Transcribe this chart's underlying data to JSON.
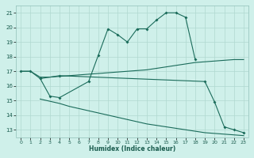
{
  "xlabel": "Humidex (Indice chaleur)",
  "background_color": "#cff0ea",
  "grid_color": "#b0d8d0",
  "line_color": "#1a6b5a",
  "xlim": [
    -0.5,
    23.5
  ],
  "ylim": [
    12.5,
    21.5
  ],
  "yticks": [
    13,
    14,
    15,
    16,
    17,
    18,
    19,
    20,
    21
  ],
  "xticks": [
    0,
    1,
    2,
    3,
    4,
    5,
    6,
    7,
    8,
    9,
    10,
    11,
    12,
    13,
    14,
    15,
    16,
    17,
    18,
    19,
    20,
    21,
    22,
    23
  ],
  "series": [
    {
      "x": [
        0,
        1,
        2,
        3,
        4,
        7,
        8,
        9,
        10,
        11,
        12,
        13,
        14,
        15,
        16,
        17,
        18
      ],
      "y": [
        17.0,
        17.0,
        16.5,
        15.3,
        15.2,
        16.3,
        18.1,
        19.9,
        19.5,
        19.0,
        19.9,
        19.9,
        20.5,
        21.0,
        21.0,
        20.7,
        17.8
      ],
      "marker": true
    },
    {
      "x": [
        2,
        4,
        19,
        20,
        21,
        22,
        23
      ],
      "y": [
        16.5,
        16.7,
        16.3,
        14.9,
        13.2,
        13.0,
        12.8
      ],
      "marker": true
    },
    {
      "x": [
        0,
        1,
        2,
        3,
        4,
        5,
        6,
        7,
        8,
        9,
        10,
        11,
        12,
        13,
        14,
        15,
        16,
        17,
        18,
        19,
        20,
        21,
        22,
        23
      ],
      "y": [
        17.0,
        17.0,
        16.6,
        16.6,
        16.65,
        16.7,
        16.75,
        16.8,
        16.85,
        16.9,
        16.95,
        17.0,
        17.05,
        17.1,
        17.2,
        17.3,
        17.4,
        17.5,
        17.6,
        17.65,
        17.7,
        17.75,
        17.8,
        17.8
      ],
      "marker": false
    },
    {
      "x": [
        2,
        3,
        4,
        5,
        6,
        7,
        8,
        9,
        10,
        11,
        12,
        13,
        14,
        15,
        16,
        17,
        18,
        19,
        20,
        21,
        22,
        23
      ],
      "y": [
        15.1,
        14.95,
        14.8,
        14.6,
        14.45,
        14.3,
        14.15,
        14.0,
        13.85,
        13.7,
        13.55,
        13.4,
        13.3,
        13.2,
        13.1,
        13.0,
        12.9,
        12.8,
        12.75,
        12.7,
        12.65,
        12.6
      ],
      "marker": false
    }
  ]
}
